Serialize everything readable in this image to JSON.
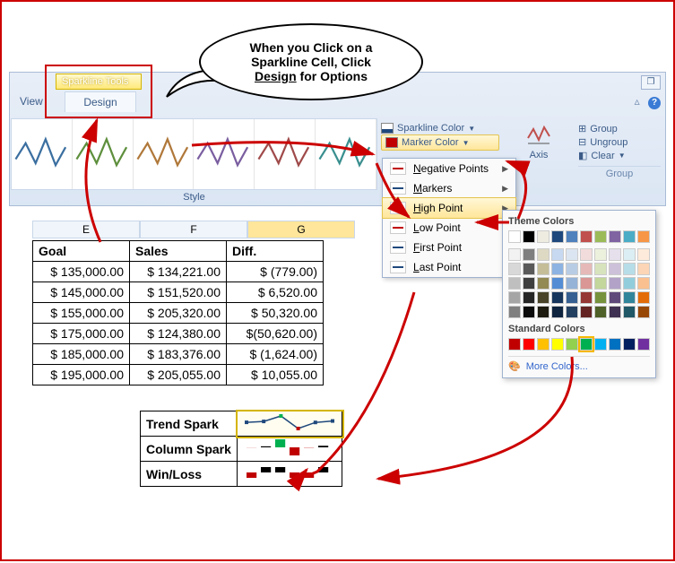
{
  "tabs": {
    "tools_label": "Sparkline Tools",
    "design": "Design",
    "view": "View"
  },
  "callout": {
    "line1": "When you Click on a",
    "line2": "Sparkline Cell, Click",
    "line3_u": "Design",
    "line3_rest": " for Options"
  },
  "ribbon": {
    "style_label": "Style",
    "sparkline_color": "Sparkline Color",
    "marker_color": "Marker Color",
    "axis": "Axis",
    "group": "Group",
    "ungroup": "Ungroup",
    "clear": "Clear",
    "group_caption": "Group",
    "style_colors": [
      "#3b6fa0",
      "#5e8f3d",
      "#b0783a",
      "#7a5ea0",
      "#a04a4a",
      "#3a8f8f"
    ]
  },
  "dropdown": {
    "items": [
      {
        "label": "Negative Points",
        "color": "#c00000"
      },
      {
        "label": "Markers",
        "color": "#1f497d"
      },
      {
        "label": "High Point",
        "color": "#00b050",
        "selected": true
      },
      {
        "label": "Low Point",
        "color": "#c00000"
      },
      {
        "label": "First Point",
        "color": "#1f497d"
      },
      {
        "label": "Last Point",
        "color": "#1f497d"
      }
    ]
  },
  "picker": {
    "theme_title": "Theme Colors",
    "standard_title": "Standard Colors",
    "more": "More Colors...",
    "theme_row1": [
      "#ffffff",
      "#000000",
      "#eeece1",
      "#1f497d",
      "#4f81bd",
      "#c0504d",
      "#9bbb59",
      "#8064a2",
      "#4bacc6",
      "#f79646"
    ],
    "theme_rows": [
      [
        "#f2f2f2",
        "#7f7f7f",
        "#ddd9c3",
        "#c6d9f0",
        "#dbe5f1",
        "#f2dcdb",
        "#ebf1dd",
        "#e5e0ec",
        "#dbeef3",
        "#fdeada"
      ],
      [
        "#d8d8d8",
        "#595959",
        "#c4bd97",
        "#8db3e2",
        "#b8cce4",
        "#e5b9b7",
        "#d7e3bc",
        "#ccc1d9",
        "#b7dde8",
        "#fbd5b5"
      ],
      [
        "#bfbfbf",
        "#3f3f3f",
        "#938953",
        "#548dd4",
        "#95b3d7",
        "#d99694",
        "#c3d69b",
        "#b2a2c7",
        "#92cddc",
        "#fac08f"
      ],
      [
        "#a5a5a5",
        "#262626",
        "#494429",
        "#17365d",
        "#366092",
        "#953734",
        "#76923c",
        "#5f497a",
        "#31859b",
        "#e36c09"
      ],
      [
        "#7f7f7f",
        "#0c0c0c",
        "#1d1b10",
        "#0f243e",
        "#244061",
        "#632423",
        "#4f6128",
        "#3f3151",
        "#205867",
        "#974806"
      ]
    ],
    "standard": [
      "#c00000",
      "#ff0000",
      "#ffc000",
      "#ffff00",
      "#92d050",
      "#00b050",
      "#00b0f0",
      "#0070c0",
      "#002060",
      "#7030a0"
    ],
    "selected_index_standard": 5
  },
  "columns": {
    "E": "E",
    "F": "F",
    "G": "G"
  },
  "table": {
    "headers": [
      "Goal",
      "Sales",
      "Diff."
    ],
    "rows": [
      [
        "$ 135,000.00",
        "$ 134,221.00",
        "$      (779.00)"
      ],
      [
        "$ 145,000.00",
        "$ 151,520.00",
        "$    6,520.00"
      ],
      [
        "$ 155,000.00",
        "$ 205,320.00",
        "$  50,320.00"
      ],
      [
        "$ 175,000.00",
        "$ 124,380.00",
        "$(50,620.00)"
      ],
      [
        "$ 185,000.00",
        "$ 183,376.00",
        "$  (1,624.00)"
      ],
      [
        "$ 195,000.00",
        "$ 205,055.00",
        "$  10,055.00"
      ]
    ]
  },
  "sparks": {
    "trend_label": "Trend Spark",
    "column_label": "Column Spark",
    "winloss_label": "Win/Loss",
    "trend": {
      "values": [
        -779,
        6520,
        50320,
        -50620,
        -1624,
        10055
      ],
      "line_color": "#1f497d",
      "marker_color": "#1f497d",
      "high_marker": "#00b050",
      "low_marker": "#c00000"
    },
    "column": {
      "values": [
        -779,
        6520,
        50320,
        -50620,
        -1624,
        10055
      ],
      "pos_color": "#000000",
      "neg_color": "#c00000",
      "high_color": "#00b050"
    },
    "winloss": {
      "values": [
        -1,
        1,
        1,
        -1,
        -1,
        1
      ],
      "pos_color": "#000000",
      "neg_color": "#c00000"
    }
  }
}
